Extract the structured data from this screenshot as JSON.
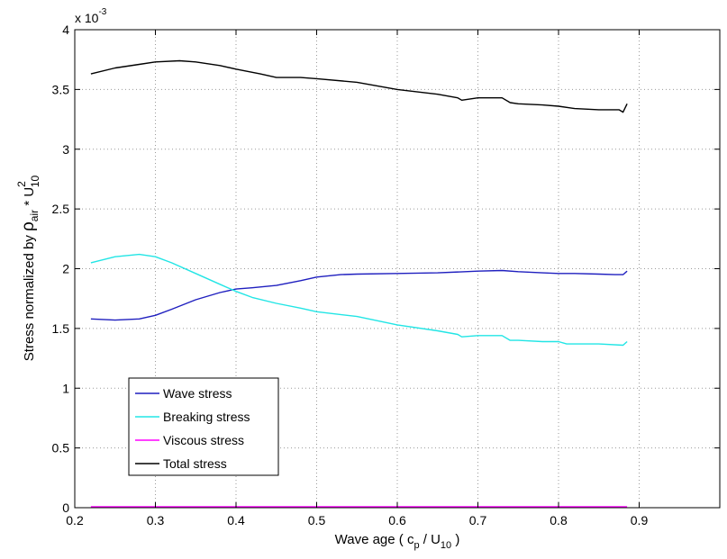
{
  "chart_data": {
    "type": "line",
    "xlabel": "Wave age ( c_p / U_10 )",
    "ylabel": "Stress normalized by ρ_air * U_10^2",
    "y_exponent_label": "x 10",
    "y_exponent": "-3",
    "xlim": [
      0.2,
      1.0
    ],
    "ylim": [
      0,
      4
    ],
    "x_ticks": [
      "0.2",
      "0.3",
      "0.4",
      "0.5",
      "0.6",
      "0.7",
      "0.8",
      "0.9"
    ],
    "y_ticks": [
      "0",
      "0.5",
      "1",
      "1.5",
      "2",
      "2.5",
      "3",
      "3.5",
      "4"
    ],
    "grid": true,
    "legend_position": "lower-left",
    "series": [
      {
        "name": "Wave stress",
        "color": "#1f1fbf",
        "x": [
          0.22,
          0.25,
          0.28,
          0.3,
          0.32,
          0.35,
          0.38,
          0.4,
          0.42,
          0.45,
          0.48,
          0.5,
          0.53,
          0.55,
          0.6,
          0.65,
          0.7,
          0.73,
          0.75,
          0.78,
          0.8,
          0.82,
          0.85,
          0.87,
          0.88,
          0.885
        ],
        "y": [
          1.58,
          1.57,
          1.58,
          1.61,
          1.66,
          1.74,
          1.8,
          1.83,
          1.84,
          1.86,
          1.9,
          1.93,
          1.95,
          1.955,
          1.96,
          1.965,
          1.98,
          1.985,
          1.975,
          1.965,
          1.96,
          1.96,
          1.955,
          1.95,
          1.95,
          1.98
        ]
      },
      {
        "name": "Breaking stress",
        "color": "#22e5e5",
        "x": [
          0.22,
          0.25,
          0.28,
          0.3,
          0.32,
          0.35,
          0.38,
          0.4,
          0.42,
          0.45,
          0.48,
          0.5,
          0.55,
          0.6,
          0.65,
          0.675,
          0.68,
          0.7,
          0.73,
          0.74,
          0.75,
          0.78,
          0.8,
          0.81,
          0.85,
          0.88,
          0.885
        ],
        "y": [
          2.05,
          2.1,
          2.12,
          2.1,
          2.05,
          1.96,
          1.87,
          1.81,
          1.76,
          1.71,
          1.67,
          1.64,
          1.6,
          1.53,
          1.48,
          1.45,
          1.43,
          1.44,
          1.44,
          1.4,
          1.4,
          1.39,
          1.39,
          1.37,
          1.37,
          1.36,
          1.39
        ]
      },
      {
        "name": "Viscous stress",
        "color": "#ff00ff",
        "x": [
          0.22,
          0.885
        ],
        "y": [
          0.005,
          0.005
        ]
      },
      {
        "name": "Total stress",
        "color": "#000000",
        "x": [
          0.22,
          0.25,
          0.28,
          0.3,
          0.33,
          0.35,
          0.38,
          0.4,
          0.43,
          0.45,
          0.48,
          0.5,
          0.55,
          0.6,
          0.65,
          0.675,
          0.68,
          0.7,
          0.73,
          0.74,
          0.75,
          0.78,
          0.8,
          0.82,
          0.85,
          0.875,
          0.88,
          0.885
        ],
        "y": [
          3.63,
          3.68,
          3.71,
          3.73,
          3.74,
          3.73,
          3.7,
          3.67,
          3.63,
          3.6,
          3.6,
          3.59,
          3.56,
          3.5,
          3.46,
          3.43,
          3.41,
          3.43,
          3.43,
          3.39,
          3.38,
          3.37,
          3.36,
          3.34,
          3.33,
          3.33,
          3.31,
          3.38
        ]
      }
    ]
  }
}
